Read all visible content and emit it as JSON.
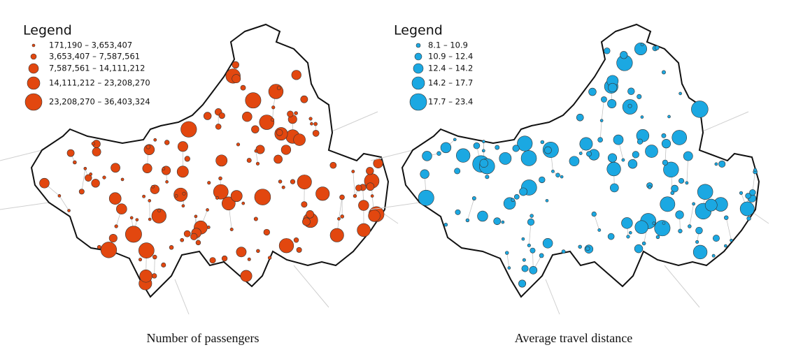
{
  "panels": [
    {
      "legend": {
        "title": "Legend",
        "items": [
          "171,190 – 3,653,407",
          "3,653,407 – 7,587,561",
          "7,587,561 – 14,111,212",
          "14,111,212 – 23,208,270",
          "23,208,270 – 36,403,324"
        ]
      },
      "color": "#e2470f",
      "caption": "Number of passengers"
    },
    {
      "legend": {
        "title": "Legend",
        "items": [
          "8.1 – 10.9",
          "10.9 – 12.4",
          "12.4 – 14.2",
          "14.2 – 17.7",
          "17.7 – 23.4"
        ]
      },
      "color": "#1ba8e2",
      "caption": "Average travel distance"
    }
  ]
}
